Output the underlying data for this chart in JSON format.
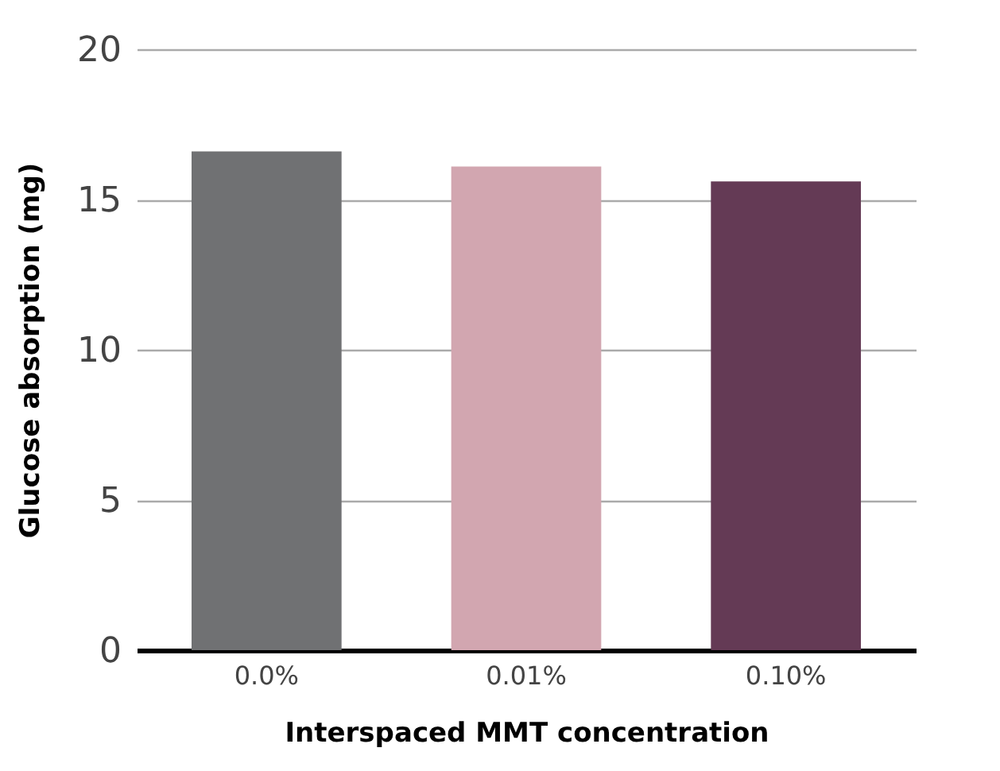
{
  "chart_data": {
    "type": "bar",
    "xlabel": "Interspaced MMT concentration",
    "ylabel": "Glucose absorption (mg)",
    "categories": [
      "0.0%",
      "0.01%",
      "0.10%"
    ],
    "values": [
      16.6,
      16.1,
      15.6
    ],
    "colors": [
      "#707173",
      "#d2a6b0",
      "#643a55"
    ],
    "ylim": [
      0,
      20
    ],
    "yticks": [
      0,
      5,
      10,
      15,
      20
    ],
    "grid": "y"
  }
}
